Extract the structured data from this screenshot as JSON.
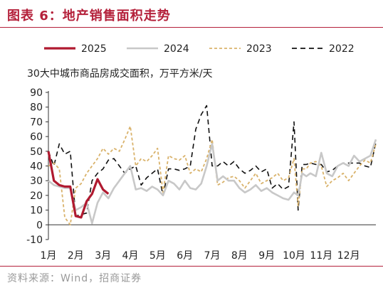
{
  "figure_title": "图表 6：地产销售面积走势",
  "source": "资料来源：Wind，招商证券",
  "colors": {
    "brand": "#b4203a",
    "s2025": "#b01a30",
    "s2024": "#c8c8c8",
    "s2023": "#d9b26a",
    "s2022": "#111111"
  },
  "chart_data": {
    "type": "line",
    "title": "30大中城市商品房成交面积，万平方米/天",
    "xlabel": "",
    "ylabel": "",
    "ylim": [
      -10,
      90
    ],
    "yticks": [
      -10,
      0,
      10,
      20,
      30,
      40,
      50,
      60,
      70,
      80,
      90
    ],
    "xlim": [
      1,
      13
    ],
    "x_ticks": [
      {
        "x": 1,
        "label": "1月"
      },
      {
        "x": 2,
        "label": "2月"
      },
      {
        "x": 3,
        "label": "3月"
      },
      {
        "x": 4,
        "label": "4月"
      },
      {
        "x": 5,
        "label": "5月"
      },
      {
        "x": 6,
        "label": "6月"
      },
      {
        "x": 7,
        "label": "7月"
      },
      {
        "x": 8,
        "label": "8月"
      },
      {
        "x": 9,
        "label": "9月"
      },
      {
        "x": 10,
        "label": "10月"
      },
      {
        "x": 11,
        "label": "11月"
      },
      {
        "x": 12,
        "label": "12月"
      }
    ],
    "legend_position": "top",
    "grid": false,
    "series": [
      {
        "name": "2022",
        "style": "dashed",
        "color": "#111111",
        "x": [
          1.0,
          1.2,
          1.4,
          1.6,
          1.8,
          2.0,
          2.2,
          2.4,
          2.6,
          2.8,
          3.0,
          3.2,
          3.4,
          3.6,
          3.8,
          4.0,
          4.2,
          4.4,
          4.6,
          4.8,
          5.0,
          5.2,
          5.4,
          5.6,
          5.8,
          6.0,
          6.2,
          6.4,
          6.6,
          6.8,
          7.0,
          7.2,
          7.4,
          7.6,
          7.8,
          8.0,
          8.2,
          8.4,
          8.6,
          8.8,
          9.0,
          9.2,
          9.4,
          9.6,
          9.8,
          10.0,
          10.15,
          10.3,
          10.45,
          10.6,
          10.8,
          11.0,
          11.2,
          11.4,
          11.6,
          11.8,
          12.0,
          12.2,
          12.4,
          12.6,
          12.8,
          13.0
        ],
        "y": [
          50,
          40,
          55,
          48,
          50,
          6,
          7,
          8,
          30,
          35,
          38,
          44,
          45,
          40,
          35,
          38,
          40,
          27,
          32,
          35,
          38,
          20,
          38,
          38,
          37,
          38,
          40,
          65,
          75,
          81,
          40,
          40,
          43,
          40,
          43,
          38,
          35,
          37,
          40,
          36,
          38,
          25,
          28,
          24,
          26,
          70,
          10,
          41,
          41,
          42,
          41,
          41,
          36,
          37,
          40,
          42,
          42,
          42,
          42,
          40,
          39,
          56
        ]
      },
      {
        "name": "2023",
        "style": "dashed",
        "color": "#d9b26a",
        "x": [
          1.0,
          1.2,
          1.4,
          1.6,
          1.8,
          2.0,
          2.2,
          2.4,
          2.6,
          2.8,
          3.0,
          3.2,
          3.4,
          3.6,
          3.8,
          4.0,
          4.2,
          4.4,
          4.6,
          4.8,
          5.0,
          5.2,
          5.4,
          5.6,
          5.8,
          6.0,
          6.2,
          6.4,
          6.6,
          6.8,
          7.0,
          7.2,
          7.4,
          7.6,
          7.8,
          8.0,
          8.2,
          8.4,
          8.6,
          8.8,
          9.0,
          9.2,
          9.4,
          9.6,
          9.8,
          10.0,
          10.15,
          10.3,
          10.45,
          10.6,
          10.8,
          11.0,
          11.2,
          11.4,
          11.6,
          11.8,
          12.0,
          12.2,
          12.4,
          12.6,
          12.8,
          13.0
        ],
        "y": [
          40,
          42,
          38,
          5,
          0,
          25,
          28,
          35,
          40,
          45,
          52,
          48,
          52,
          50,
          58,
          67,
          40,
          45,
          43,
          47,
          52,
          22,
          47,
          45,
          44,
          47,
          35,
          38,
          36,
          45,
          58,
          27,
          29,
          32,
          33,
          30,
          25,
          30,
          35,
          28,
          30,
          32,
          35,
          30,
          32,
          45,
          13,
          38,
          38,
          42,
          43,
          40,
          26,
          30,
          32,
          35,
          30,
          35,
          40,
          44,
          42,
          55
        ]
      },
      {
        "name": "2024",
        "style": "solid",
        "color": "#c8c8c8",
        "x": [
          1.0,
          1.2,
          1.4,
          1.6,
          1.8,
          2.0,
          2.2,
          2.4,
          2.6,
          2.8,
          3.0,
          3.2,
          3.4,
          3.6,
          3.8,
          4.0,
          4.2,
          4.4,
          4.6,
          4.8,
          5.0,
          5.2,
          5.4,
          5.6,
          5.8,
          6.0,
          6.2,
          6.4,
          6.6,
          6.8,
          7.0,
          7.2,
          7.4,
          7.6,
          7.8,
          8.0,
          8.2,
          8.4,
          8.6,
          8.8,
          9.0,
          9.2,
          9.4,
          9.6,
          9.8,
          10.0,
          10.15,
          10.3,
          10.45,
          10.6,
          10.8,
          11.0,
          11.2,
          11.4,
          11.6,
          11.8,
          12.0,
          12.2,
          12.4,
          12.6,
          12.8,
          13.0
        ],
        "y": [
          30,
          27,
          26,
          25,
          25,
          10,
          12,
          15,
          1,
          15,
          22,
          18,
          25,
          30,
          35,
          40,
          24,
          25,
          23,
          26,
          24,
          20,
          30,
          28,
          24,
          30,
          25,
          24,
          28,
          40,
          55,
          30,
          33,
          30,
          30,
          25,
          22,
          24,
          27,
          23,
          25,
          22,
          20,
          18,
          17,
          22,
          20,
          35,
          33,
          35,
          33,
          49,
          35,
          33,
          40,
          42,
          40,
          47,
          43,
          45,
          47,
          58
        ]
      },
      {
        "name": "2025",
        "style": "solid",
        "color": "#b01a30",
        "x": [
          1.0,
          1.2,
          1.4,
          1.6,
          1.8,
          2.0,
          2.2,
          2.4,
          2.6,
          2.8,
          3.0,
          3.2
        ],
        "y": [
          50,
          30,
          27,
          26,
          26,
          6,
          5,
          16,
          21,
          31,
          24,
          21
        ]
      }
    ]
  }
}
